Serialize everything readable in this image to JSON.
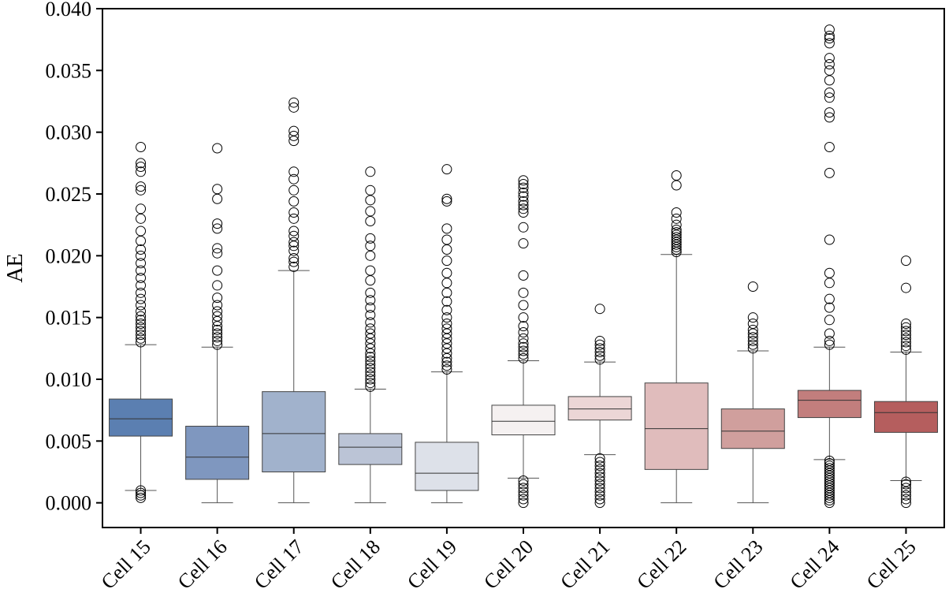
{
  "chart_data": {
    "type": "box",
    "title": "",
    "xlabel": "",
    "ylabel": "AE",
    "ylim": [
      -0.002,
      0.04
    ],
    "yticks": [
      0.0,
      0.005,
      0.01,
      0.015,
      0.02,
      0.025,
      0.03,
      0.035,
      0.04
    ],
    "ytick_labels": [
      "0.000",
      "0.005",
      "0.010",
      "0.015",
      "0.020",
      "0.025",
      "0.030",
      "0.035",
      "0.040"
    ],
    "categories": [
      "Cell 15",
      "Cell 16",
      "Cell 17",
      "Cell 18",
      "Cell 19",
      "Cell 20",
      "Cell 21",
      "Cell 22",
      "Cell 23",
      "Cell 24",
      "Cell 25"
    ],
    "boxes": [
      {
        "name": "Cell 15",
        "whisker_low": 0.001,
        "q1": 0.0054,
        "median": 0.0068,
        "q3": 0.0084,
        "whisker_high": 0.0128,
        "color": "#5b7fb1",
        "outliers": [
          0.0004,
          0.0006,
          0.0008,
          0.001,
          0.013,
          0.0133,
          0.0136,
          0.0139,
          0.0142,
          0.0145,
          0.0148,
          0.0151,
          0.0155,
          0.016,
          0.0165,
          0.017,
          0.0176,
          0.0182,
          0.0188,
          0.0194,
          0.02,
          0.0205,
          0.0212,
          0.022,
          0.023,
          0.0238,
          0.0253,
          0.0256,
          0.0268,
          0.0272,
          0.0275,
          0.0288
        ]
      },
      {
        "name": "Cell 16",
        "whisker_low": 0.0,
        "q1": 0.0019,
        "median": 0.0037,
        "q3": 0.0062,
        "whisker_high": 0.0126,
        "color": "#7f97bf",
        "outliers": [
          0.0128,
          0.0131,
          0.0134,
          0.0137,
          0.014,
          0.0143,
          0.0147,
          0.0151,
          0.0155,
          0.016,
          0.0166,
          0.0176,
          0.0188,
          0.0202,
          0.0206,
          0.0222,
          0.0226,
          0.0246,
          0.0254,
          0.0287
        ]
      },
      {
        "name": "Cell 17",
        "whisker_low": 0.0,
        "q1": 0.0025,
        "median": 0.0056,
        "q3": 0.009,
        "whisker_high": 0.0188,
        "color": "#a1b2cc",
        "outliers": [
          0.0191,
          0.0195,
          0.0198,
          0.0204,
          0.0208,
          0.0211,
          0.0216,
          0.022,
          0.023,
          0.0235,
          0.0244,
          0.0253,
          0.0262,
          0.0268,
          0.0293,
          0.0297,
          0.0301,
          0.032,
          0.0324
        ]
      },
      {
        "name": "Cell 18",
        "whisker_low": 0.0,
        "q1": 0.0031,
        "median": 0.0045,
        "q3": 0.0056,
        "whisker_high": 0.0092,
        "color": "#bbc4d6",
        "outliers": [
          0.0094,
          0.0097,
          0.01,
          0.0103,
          0.0106,
          0.0109,
          0.0112,
          0.0115,
          0.0118,
          0.0121,
          0.0125,
          0.0129,
          0.0133,
          0.0137,
          0.0141,
          0.0146,
          0.0152,
          0.0158,
          0.0164,
          0.017,
          0.018,
          0.0188,
          0.02,
          0.0208,
          0.0214,
          0.0228,
          0.0236,
          0.0245,
          0.0253,
          0.0268
        ]
      },
      {
        "name": "Cell 19",
        "whisker_low": 0.0,
        "q1": 0.001,
        "median": 0.0024,
        "q3": 0.0049,
        "whisker_high": 0.0106,
        "color": "#dde1e9",
        "outliers": [
          0.0108,
          0.0111,
          0.0114,
          0.0117,
          0.0121,
          0.0125,
          0.0129,
          0.0133,
          0.0137,
          0.0141,
          0.0145,
          0.015,
          0.0156,
          0.0163,
          0.017,
          0.0178,
          0.0186,
          0.0196,
          0.0205,
          0.0213,
          0.0222,
          0.0244,
          0.0246,
          0.027
        ]
      },
      {
        "name": "Cell 20",
        "whisker_low": 0.002,
        "q1": 0.0055,
        "median": 0.0066,
        "q3": 0.0079,
        "whisker_high": 0.0115,
        "color": "#f5f1f1",
        "outliers": [
          0.0,
          0.0003,
          0.0006,
          0.0009,
          0.0012,
          0.0015,
          0.0018,
          0.0117,
          0.012,
          0.0123,
          0.0126,
          0.0129,
          0.0133,
          0.0138,
          0.0143,
          0.015,
          0.016,
          0.017,
          0.0184,
          0.021,
          0.0223,
          0.0235,
          0.0238,
          0.0241,
          0.0244,
          0.0248,
          0.0251,
          0.0255,
          0.0258,
          0.0261
        ]
      },
      {
        "name": "Cell 21",
        "whisker_low": 0.0039,
        "q1": 0.0067,
        "median": 0.0076,
        "q3": 0.0086,
        "whisker_high": 0.0114,
        "color": "#ecd6d6",
        "outliers": [
          0.0,
          0.0003,
          0.0006,
          0.0009,
          0.0012,
          0.0015,
          0.0018,
          0.0021,
          0.0024,
          0.0027,
          0.003,
          0.0033,
          0.0036,
          0.0116,
          0.0119,
          0.0122,
          0.0125,
          0.0128,
          0.0131,
          0.0157
        ]
      },
      {
        "name": "Cell 22",
        "whisker_low": 0.0,
        "q1": 0.0027,
        "median": 0.006,
        "q3": 0.0097,
        "whisker_high": 0.0201,
        "color": "#e0bcbc",
        "outliers": [
          0.0203,
          0.0205,
          0.0207,
          0.0209,
          0.0211,
          0.0213,
          0.0215,
          0.0217,
          0.0219,
          0.0221,
          0.0225,
          0.023,
          0.0235,
          0.0257,
          0.0265
        ]
      },
      {
        "name": "Cell 23",
        "whisker_low": 0.0,
        "q1": 0.0044,
        "median": 0.0058,
        "q3": 0.0076,
        "whisker_high": 0.0123,
        "color": "#d09f9d",
        "outliers": [
          0.0125,
          0.0128,
          0.0131,
          0.0134,
          0.0137,
          0.014,
          0.0145,
          0.015,
          0.0175
        ]
      },
      {
        "name": "Cell 24",
        "whisker_low": 0.0035,
        "q1": 0.0069,
        "median": 0.0083,
        "q3": 0.0091,
        "whisker_high": 0.0126,
        "color": "#c27e7d",
        "outliers": [
          0.0,
          0.0002,
          0.0004,
          0.0006,
          0.0008,
          0.001,
          0.0012,
          0.0014,
          0.0016,
          0.0018,
          0.002,
          0.0022,
          0.0024,
          0.0026,
          0.0028,
          0.003,
          0.0032,
          0.0034,
          0.0128,
          0.0131,
          0.0137,
          0.0148,
          0.0158,
          0.0165,
          0.0178,
          0.0186,
          0.0213,
          0.0267,
          0.0288,
          0.0312,
          0.0316,
          0.0328,
          0.0332,
          0.0342,
          0.035,
          0.0355,
          0.036,
          0.0372,
          0.0376,
          0.0378,
          0.0383
        ]
      },
      {
        "name": "Cell 25",
        "whisker_low": 0.0018,
        "q1": 0.0057,
        "median": 0.0073,
        "q3": 0.0082,
        "whisker_high": 0.0122,
        "color": "#b55e5e",
        "outliers": [
          0.0,
          0.0003,
          0.0006,
          0.0009,
          0.0012,
          0.0015,
          0.0017,
          0.0124,
          0.0127,
          0.013,
          0.0133,
          0.0136,
          0.0139,
          0.0142,
          0.0145,
          0.0174,
          0.0196
        ]
      }
    ]
  }
}
